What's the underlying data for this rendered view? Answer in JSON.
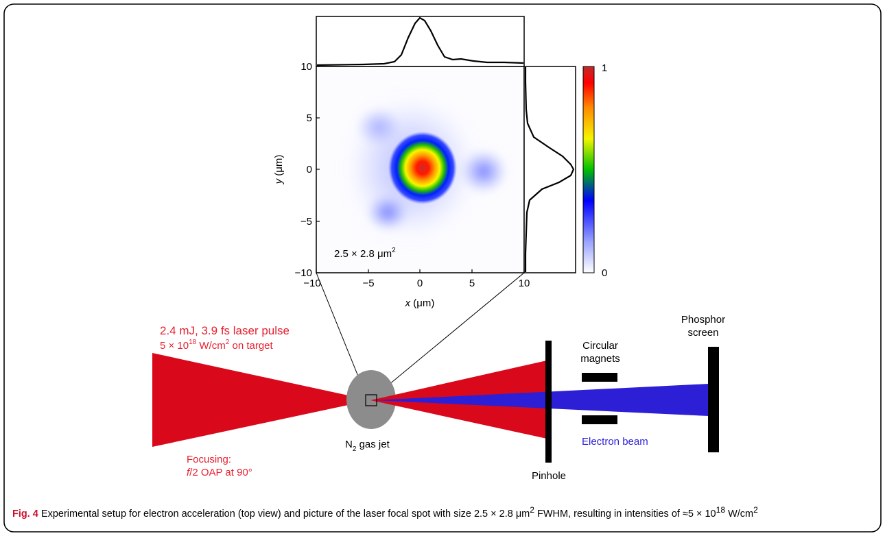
{
  "colors": {
    "laser": "#d9091b",
    "electron": "#2d1fd6",
    "gas_jet": "#8c8c8c",
    "label_red": "#e8202f",
    "label_blue": "#2d1fd6",
    "figure_label": "#c8102e"
  },
  "focal_spot": {
    "x_axis_label": "x (μm)",
    "y_axis_label": "y (μm)",
    "x_ticks": [
      "−10",
      "−5",
      "0",
      "5",
      "10"
    ],
    "y_ticks": [
      "10",
      "5",
      "0",
      "−5",
      "−10"
    ],
    "x_range": [
      -10,
      10
    ],
    "y_range": [
      -10,
      10
    ],
    "spot_size": "2.5 × 2.8 μm",
    "spot_size_sup": "2",
    "colorbar_ticks": [
      "1",
      "0"
    ],
    "colorbar_range": [
      0,
      1
    ]
  },
  "setup": {
    "laser_label_line1": "2.4 mJ, 3.9 fs laser pulse",
    "laser_label_line2_main": "5 × 10",
    "laser_label_line2_exp": "18",
    "laser_label_line2_unit": " W/cm",
    "laser_label_line2_unit_exp": "2",
    "laser_label_line2_tail": " on target",
    "focusing_line1": "Focusing:",
    "focusing_line2_italic": "f",
    "focusing_line2_rest": "/2 OAP at 90°",
    "gas_jet_main": "N",
    "gas_jet_sub": "2",
    "gas_jet_tail": " gas jet",
    "pinhole": "Pinhole",
    "magnets_line1": "Circular",
    "magnets_line2": "magnets",
    "screen_line1": "Phosphor",
    "screen_line2": "screen",
    "electron_beam": "Electron beam"
  },
  "caption": {
    "fig_label": "Fig. 4",
    "text_part1": " Experimental setup for electron acceleration (top view) and picture of the laser focal spot with size 2.5 × 2.8 μm",
    "text_sup1": "2",
    "text_part2": " FWHM, resulting in intensities of ≈5 × 10",
    "text_sup2": "18",
    "text_part3": " W/cm",
    "text_sup3": "2"
  }
}
